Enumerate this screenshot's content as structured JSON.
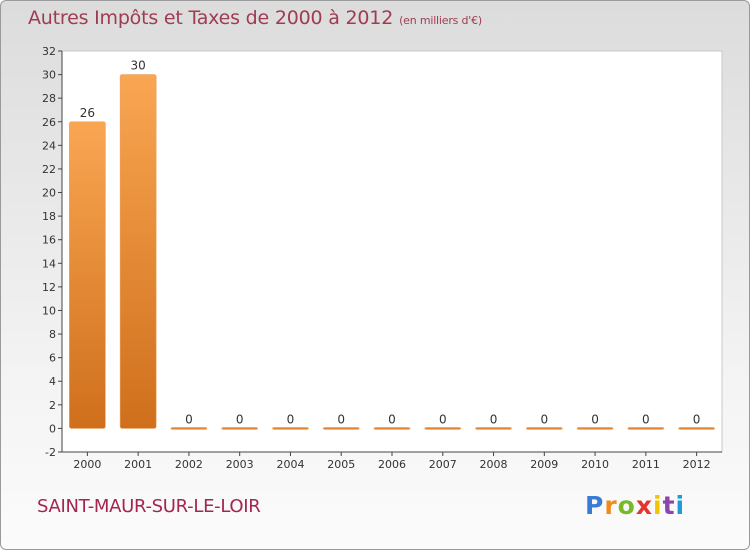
{
  "title": "Autres Impôts et Taxes de 2000 à 2012",
  "subtitle": "(en milliers d'€)",
  "commune": "SAINT-MAUR-SUR-LE-LOIR",
  "logo": {
    "letters": [
      "P",
      "r",
      "o",
      "x",
      "i",
      "t",
      "i"
    ],
    "colors": [
      "#3a7bd5",
      "#f08a1c",
      "#7ab828",
      "#e3342f",
      "#f2c500",
      "#8e44ad",
      "#1f9bd7"
    ]
  },
  "colors": {
    "bar_light": "#f9a652",
    "bar_dark": "#cf6f1c",
    "title": "#9e3c51",
    "commune": "#a3264f"
  },
  "chart_data": {
    "type": "bar",
    "categories": [
      "2000",
      "2001",
      "2002",
      "2003",
      "2004",
      "2005",
      "2006",
      "2007",
      "2008",
      "2009",
      "2010",
      "2011",
      "2012"
    ],
    "values": [
      26,
      30,
      0,
      0,
      0,
      0,
      0,
      0,
      0,
      0,
      0,
      0,
      0
    ],
    "data_labels": [
      "26",
      "30",
      "0",
      "0",
      "0",
      "0",
      "0",
      "0",
      "0",
      "0",
      "0",
      "0",
      "0"
    ],
    "ylim": [
      -2,
      32
    ],
    "yticks": [
      -2,
      0,
      2,
      4,
      6,
      8,
      10,
      12,
      14,
      16,
      18,
      20,
      22,
      24,
      26,
      28,
      30,
      32
    ],
    "grid": false,
    "title": "Autres Impôts et Taxes de 2000 à 2012",
    "xlabel": "",
    "ylabel": ""
  }
}
